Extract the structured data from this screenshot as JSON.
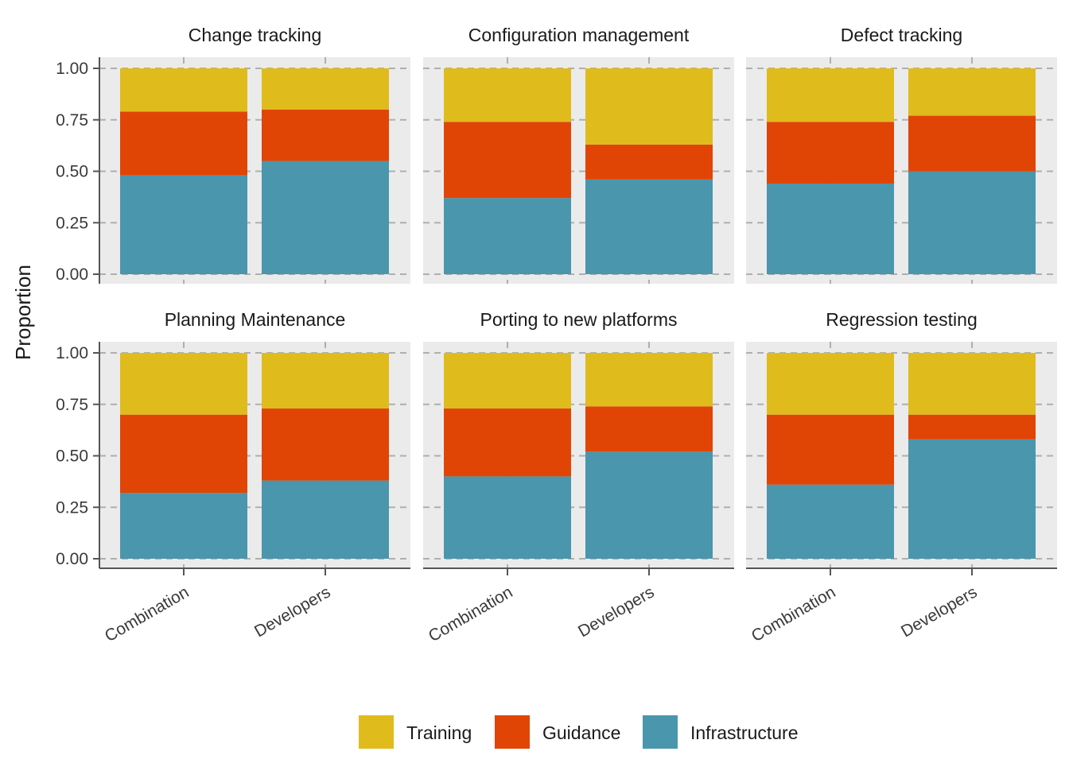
{
  "chart_data": {
    "type": "bar",
    "stacked": true,
    "facets": [
      "Change tracking",
      "Configuration management",
      "Defect tracking",
      "Planning Maintenance",
      "Porting to new platforms",
      "Regression testing"
    ],
    "categories": [
      "Combination",
      "Developers"
    ],
    "ylabel": "Proportion",
    "ylim": [
      0,
      1
    ],
    "yticks": [
      "0.00",
      "0.25",
      "0.50",
      "0.75",
      "1.00"
    ],
    "grid": "dashed",
    "legend_position": "bottom",
    "series": [
      {
        "name": "Infrastructure",
        "color": "#4A96AD",
        "values": [
          [
            0.48,
            0.55
          ],
          [
            0.37,
            0.46
          ],
          [
            0.44,
            0.5
          ],
          [
            0.32,
            0.38
          ],
          [
            0.4,
            0.52
          ],
          [
            0.36,
            0.58
          ]
        ]
      },
      {
        "name": "Guidance",
        "color": "#E04506",
        "values": [
          [
            0.31,
            0.25
          ],
          [
            0.37,
            0.17
          ],
          [
            0.3,
            0.27
          ],
          [
            0.38,
            0.35
          ],
          [
            0.33,
            0.22
          ],
          [
            0.34,
            0.12
          ]
        ]
      },
      {
        "name": "Training",
        "color": "#E0BB1C",
        "values": [
          [
            0.21,
            0.2
          ],
          [
            0.26,
            0.37
          ],
          [
            0.26,
            0.23
          ],
          [
            0.3,
            0.27
          ],
          [
            0.27,
            0.26
          ],
          [
            0.3,
            0.3
          ]
        ]
      }
    ],
    "legend": [
      "Training",
      "Guidance",
      "Infrastructure"
    ]
  }
}
